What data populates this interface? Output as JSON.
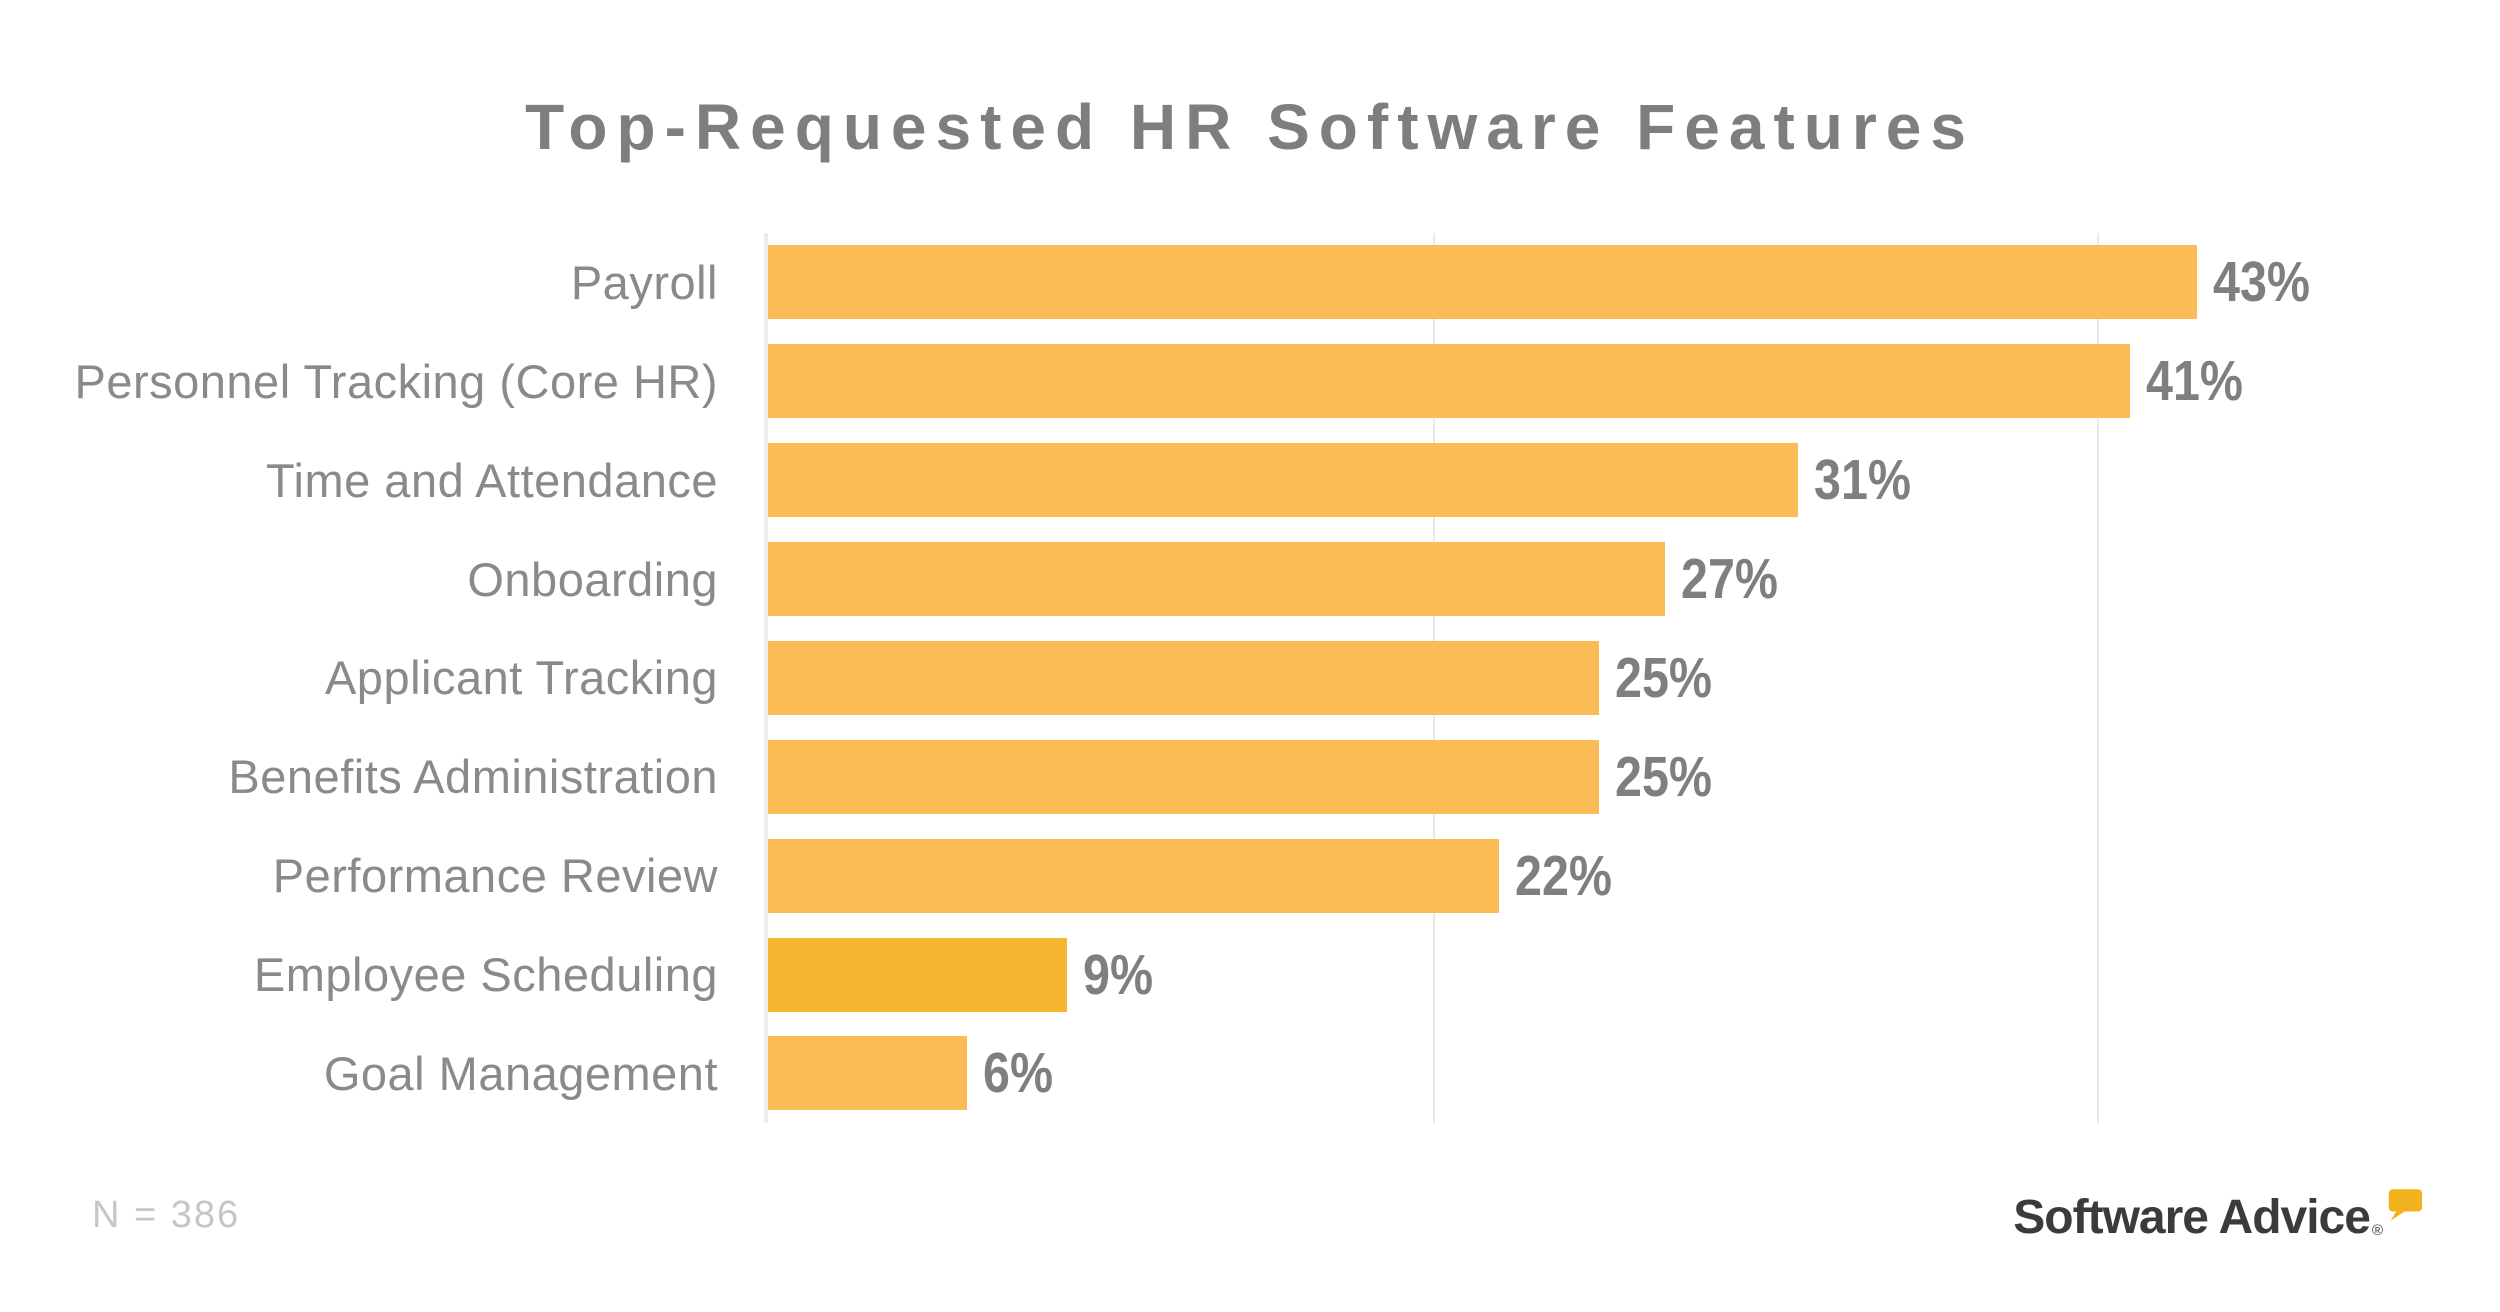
{
  "chart_data": {
    "type": "bar",
    "orientation": "horizontal",
    "title": "Top-Requested HR Software Features",
    "categories": [
      "Payroll",
      "Personnel Tracking (Core HR)",
      "Time and Attendance",
      "Onboarding",
      "Applicant Tracking",
      "Benefits Administration",
      "Performance Review",
      "Employee Scheduling",
      "Goal Management"
    ],
    "values": [
      43,
      41,
      31,
      27,
      25,
      25,
      22,
      9,
      6
    ],
    "display_values": [
      "43%",
      "41%",
      "31%",
      "27%",
      "25%",
      "25%",
      "22%",
      "9%",
      "6%"
    ],
    "xlabel": "",
    "ylabel": "",
    "xlim": [
      0,
      52
    ],
    "gridline_values": [
      0,
      20,
      40
    ],
    "grid": "vertical lines only, no tick labels",
    "legend": "none",
    "highlight_index": 7
  },
  "colors": {
    "bar": "#FBBB55",
    "bar-highlight": "#F4B72F",
    "category-label": "#8A8A8A",
    "value-label": "#7F7F7F",
    "title": "#7E7E7E",
    "gridline": "#EAEAEA",
    "axis-line": "#ECECEC",
    "note": "#C6C6C6",
    "logo-text": "#3B3B3B",
    "logo-bubble": "#F2B21D"
  },
  "footer": {
    "note": "N = 386",
    "logo_text": "Software Advice",
    "logo_registered_mark": "®"
  }
}
